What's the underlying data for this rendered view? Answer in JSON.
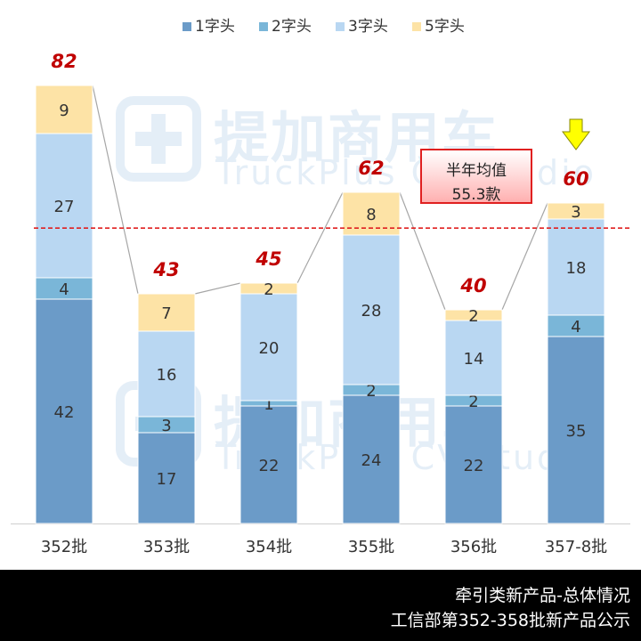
{
  "chart_data": {
    "type": "bar",
    "stacked": true,
    "categories": [
      "352批",
      "353批",
      "354批",
      "355批",
      "356批",
      "357-8批"
    ],
    "series": [
      {
        "name": "1字头",
        "color": "#6b9bc8",
        "values": [
          42,
          17,
          22,
          24,
          22,
          35
        ]
      },
      {
        "name": "2字头",
        "color": "#7ab6d8",
        "values": [
          4,
          3,
          1,
          2,
          2,
          4
        ]
      },
      {
        "name": "3字头",
        "color": "#b9d7f2",
        "values": [
          27,
          16,
          20,
          28,
          14,
          18
        ]
      },
      {
        "name": "5字头",
        "color": "#fde3a6",
        "values": [
          9,
          7,
          2,
          8,
          2,
          3
        ]
      }
    ],
    "totals": [
      82,
      43,
      45,
      62,
      40,
      60
    ],
    "average": 55.3,
    "ylim": [
      0,
      88
    ],
    "legend_position": "top",
    "grid": false
  },
  "annotation": {
    "line1": "半年均值",
    "line2": "55.3款"
  },
  "watermark": {
    "title": "提加商用车",
    "subtitle": "TruckPlus CV studio"
  },
  "footer": {
    "line1": "牵引类新产品-总体情况",
    "line2": "工信部第352-358批新产品公示"
  },
  "colors": {
    "total_label": "#c00000",
    "avg_line": "#e02020",
    "arrow": "#ffff00"
  }
}
